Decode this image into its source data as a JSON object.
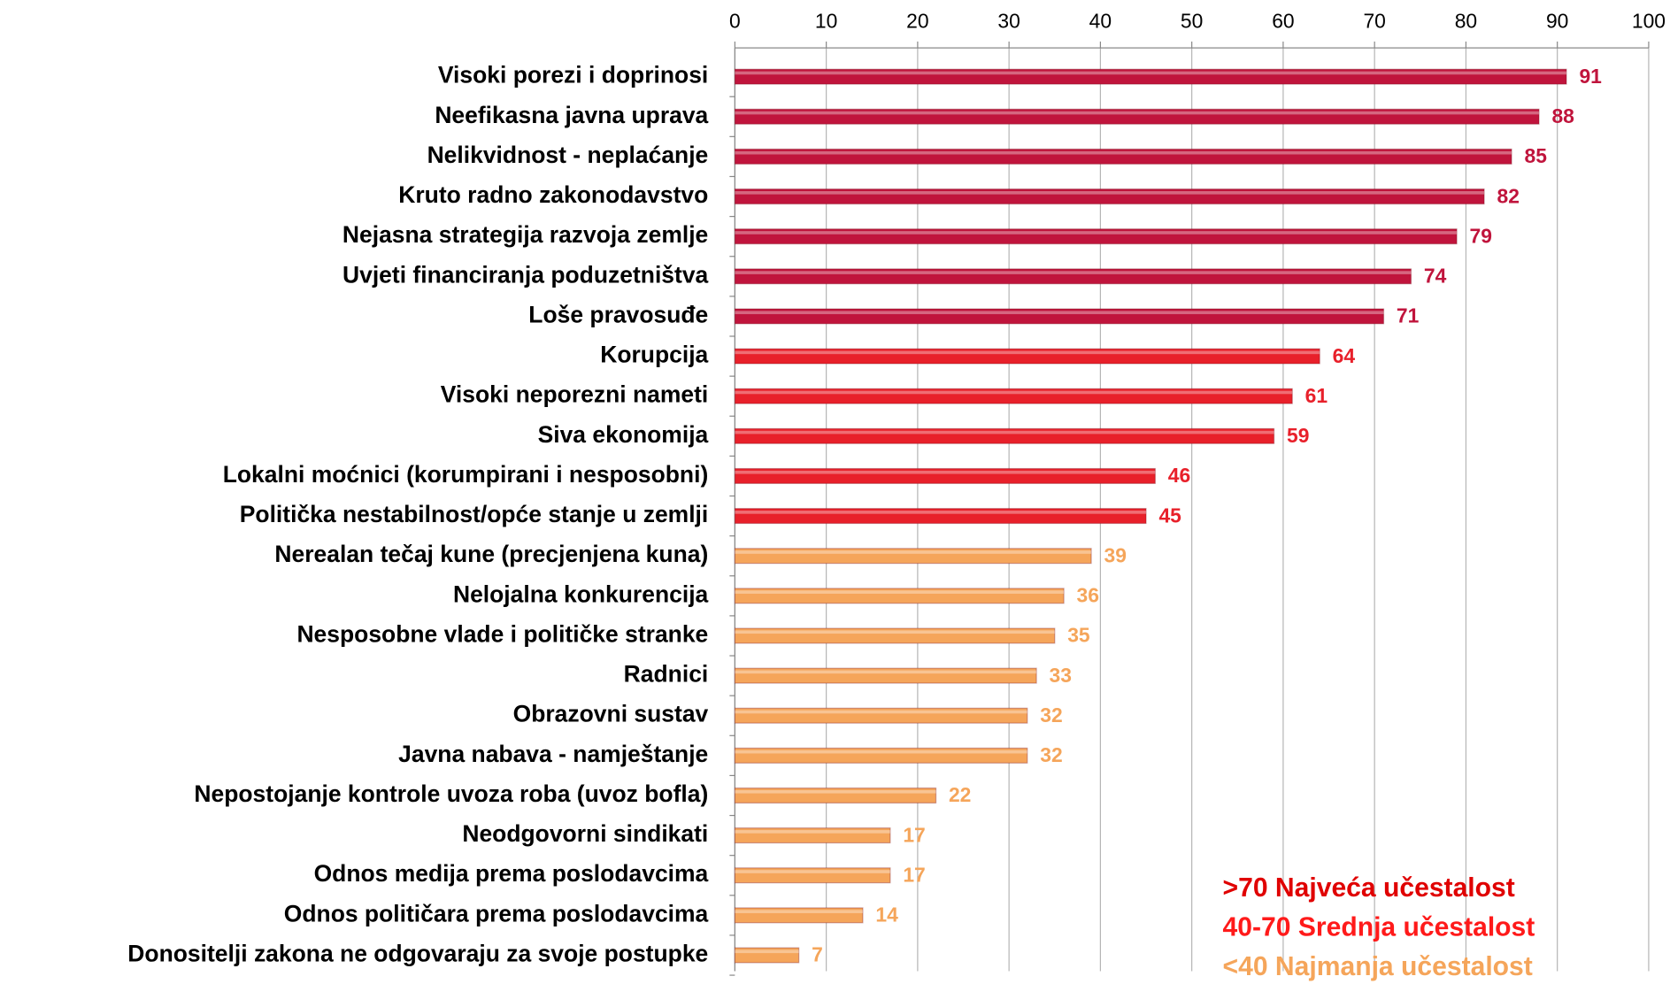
{
  "chart_data": {
    "type": "hbar",
    "categories": [
      "Visoki porezi i doprinosi",
      "Neefikasna javna uprava",
      "Nelikvidnost - neplaćanje",
      "Kruto radno zakonodavstvo",
      "Nejasna strategija razvoja zemlje",
      "Uvjeti financiranja poduzetništva",
      "Loše pravosuđe",
      "Korupcija",
      "Visoki neporezni nameti",
      "Siva ekonomija",
      "Lokalni moćnici (korumpirani i nesposobni)",
      "Politička nestabilnost/opće stanje u zemlji",
      "Nerealan tečaj kune (precjenjena kuna)",
      "Nelojalna konkurencija",
      "Nesposobne vlade i političke stranke",
      "Radnici",
      "Obrazovni sustav",
      "Javna nabava - namještanje",
      "Nepostojanje kontrole uvoza roba (uvoz bofla)",
      "Neodgovorni sindikati",
      "Odnos medija prema poslodavcima",
      "Odnos političara prema poslodavcima",
      "Donositelji zakona ne odgovaraju za svoje postupke"
    ],
    "values": [
      91,
      88,
      85,
      82,
      79,
      74,
      71,
      64,
      61,
      59,
      46,
      45,
      39,
      36,
      35,
      33,
      32,
      32,
      22,
      17,
      17,
      14,
      7
    ],
    "colors": [
      "#c0143c",
      "#c0143c",
      "#c0143c",
      "#c0143c",
      "#c0143c",
      "#c0143c",
      "#c0143c",
      "#e8202a",
      "#e8202a",
      "#e8202a",
      "#e8202a",
      "#e8202a",
      "#f5a55a",
      "#f5a55a",
      "#f5a55a",
      "#f5a55a",
      "#f5a55a",
      "#f5a55a",
      "#f5a55a",
      "#f5a55a",
      "#f5a55a",
      "#f5a55a",
      "#f5a55a"
    ],
    "xlim": [
      0,
      100
    ],
    "xticks": [
      0,
      10,
      20,
      30,
      40,
      50,
      60,
      70,
      80,
      90,
      100
    ],
    "grid": true,
    "legend_position": "lower right",
    "legend": [
      {
        "text": ">70 Najveća učestalost",
        "color": "#e00000"
      },
      {
        "text": "40-70 Srednja učestalost",
        "color": "#ff1a1a"
      },
      {
        "text": "<40 Najmanja učestalost",
        "color": "#f5a55a"
      }
    ]
  }
}
